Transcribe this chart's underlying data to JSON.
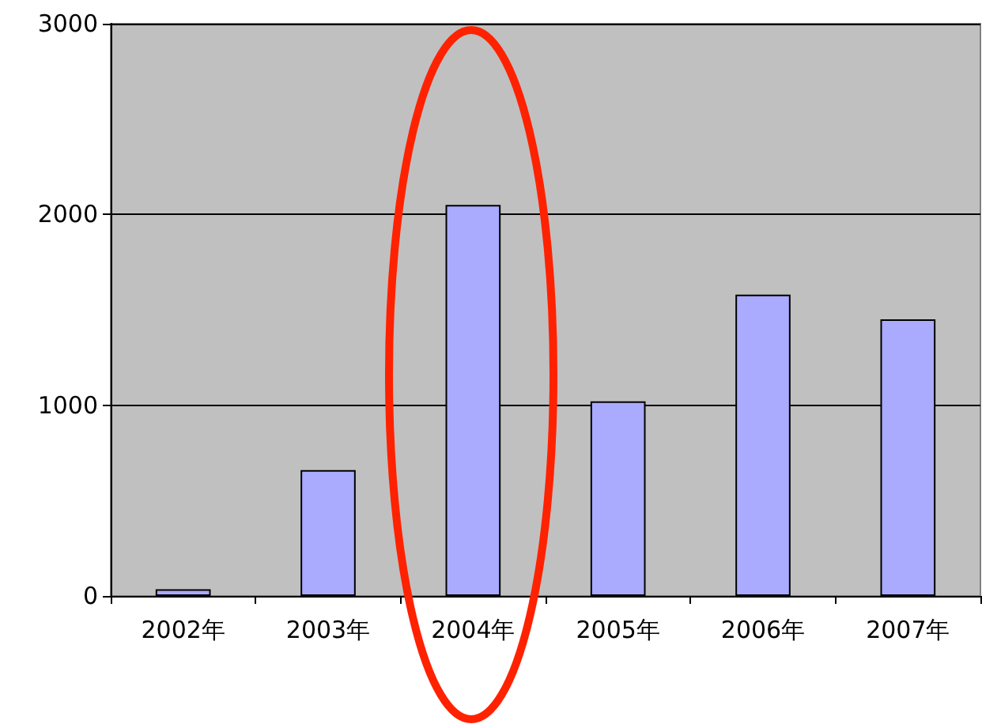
{
  "chart_data": {
    "type": "bar",
    "categories": [
      "2002年",
      "2003年",
      "2004年",
      "2005年",
      "2006年",
      "2007年"
    ],
    "values": [
      35,
      660,
      2050,
      1020,
      1580,
      1450
    ],
    "color": "#aaaaff",
    "ylim": [
      0,
      3000
    ],
    "yticks": [
      0,
      1000,
      2000,
      3000
    ],
    "grid": "y"
  }
}
